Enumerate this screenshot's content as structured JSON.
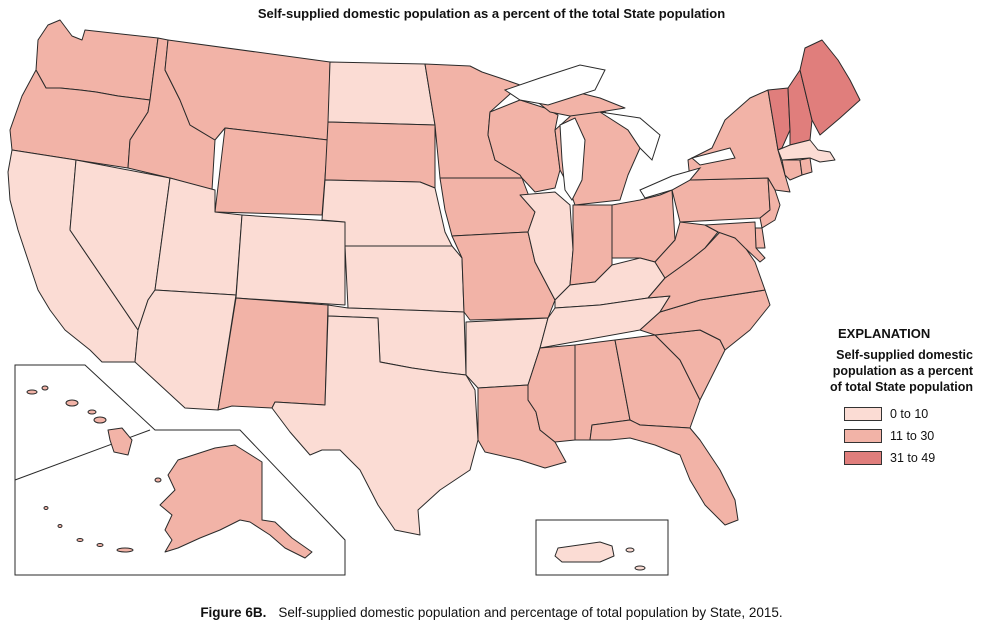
{
  "title": "Self-supplied domestic population as a percent of the total State population",
  "legend": {
    "heading": "EXPLANATION",
    "subtitle": "Self-supplied domestic\npopulation as a percent\nof total State population",
    "classes": [
      {
        "label": "0 to 10",
        "color": "#fbdcd4"
      },
      {
        "label": "11 to 30",
        "color": "#f2b3a7"
      },
      {
        "label": "31 to 49",
        "color": "#e07e7c"
      }
    ]
  },
  "caption": {
    "label": "Figure 6B.",
    "text": "Self-supplied domestic population and percentage of total population by State, 2015."
  },
  "state_classes": {
    "WA": 1,
    "OR": 1,
    "CA": 0,
    "NV": 0,
    "ID": 1,
    "MT": 1,
    "WY": 1,
    "UT": 0,
    "AZ": 0,
    "CO": 0,
    "NM": 1,
    "ND": 0,
    "SD": 1,
    "NE": 0,
    "KS": 0,
    "OK": 0,
    "TX": 0,
    "MN": 1,
    "IA": 1,
    "MO": 1,
    "AR": 0,
    "LA": 1,
    "WI": 1,
    "IL": 0,
    "MI": 1,
    "IN": 1,
    "OH": 1,
    "KY": 0,
    "TN": 0,
    "MS": 1,
    "AL": 1,
    "GA": 1,
    "FL": 1,
    "SC": 1,
    "NC": 1,
    "VA": 1,
    "WV": 1,
    "PA": 1,
    "NY": 1,
    "VT": 2,
    "NH": 2,
    "ME": 2,
    "MA": 0,
    "RI": 1,
    "CT": 1,
    "NJ": 1,
    "DE": 1,
    "MD": 1,
    "AK": 1,
    "HI": 1,
    "PR": 0
  }
}
